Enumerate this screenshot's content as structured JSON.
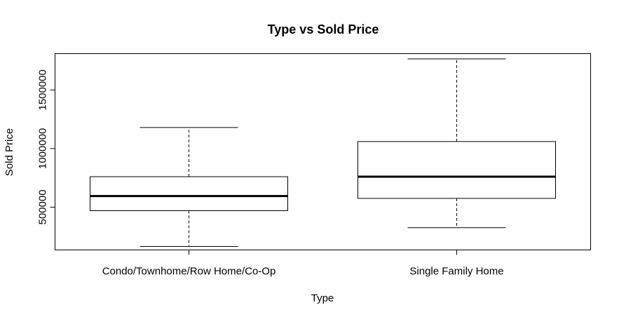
{
  "chart_data": {
    "type": "boxplot",
    "title": "Type vs Sold Price",
    "xlabel": "Type",
    "ylabel": "Sold Price",
    "ylim": [
      135000,
      1810000
    ],
    "yticks": [
      500000,
      1000000,
      1500000
    ],
    "ytick_labels": [
      "500000",
      "1000000",
      "1500000"
    ],
    "grid": false,
    "categories": [
      "Condo/Townhome/Row Home/Co-Op",
      "Single Family Home"
    ],
    "boxes": [
      {
        "category": "Condo/Townhome/Row Home/Co-Op",
        "whisker_low": 165000,
        "q1": 470000,
        "median": 595000,
        "q3": 760000,
        "whisker_high": 1180000
      },
      {
        "category": "Single Family Home",
        "whisker_low": 325000,
        "q1": 575000,
        "median": 760000,
        "q3": 1060000,
        "whisker_high": 1765000
      }
    ]
  }
}
